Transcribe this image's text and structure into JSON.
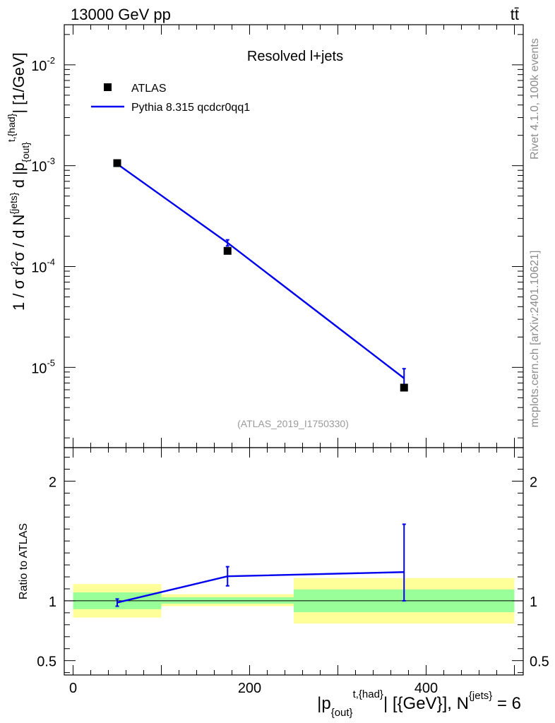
{
  "header": {
    "energy_label": "13000 GeV pp",
    "process_label": "tt̄"
  },
  "side_labels": {
    "rivet": "Rivet 4.1.0,  100k events",
    "mcplots": "mcplots.cern.ch [arXiv:2401.10621]"
  },
  "chart_data": [
    {
      "type": "scatter",
      "panel": "main",
      "title": "Resolved l+jets",
      "watermark": "(ATLAS_2019_I1750330)",
      "ylabel": "1 / σ d²σ / d N^{jets} d |p_{out}^{t,{had}}| [1/GeV]",
      "yscale": "log",
      "ylim": [
        1.6e-06,
        0.025
      ],
      "xlim": [
        -10,
        510
      ],
      "y_ticks": [
        {
          "value": 1e-05,
          "base": "10",
          "exp": "-5"
        },
        {
          "value": 0.0001,
          "base": "10",
          "exp": "-4"
        },
        {
          "value": 0.001,
          "base": "10",
          "exp": "-3"
        },
        {
          "value": 0.01,
          "base": "10",
          "exp": "-2"
        }
      ],
      "legend": {
        "position": "top-left",
        "entries": [
          "ATLAS",
          "Pythia 8.315 qcdcr0qq1"
        ]
      },
      "series": [
        {
          "name": "ATLAS",
          "style": "marker-square",
          "color": "#000000",
          "x": [
            50,
            175,
            375
          ],
          "y": [
            0.00106,
            0.000143,
            6.3e-06
          ]
        },
        {
          "name": "Pythia 8.315 qcdcr0qq1",
          "style": "line",
          "color": "#0000ee",
          "x": [
            50,
            175,
            375
          ],
          "y": [
            0.00104,
            0.000172,
            7.8e-06
          ],
          "err_up": [
            3e-05,
            1.2e-05,
            1.9e-06
          ],
          "err_down": [
            3e-05,
            1.2e-05,
            1.9e-06
          ]
        }
      ]
    },
    {
      "type": "line",
      "panel": "ratio",
      "ylabel": "Ratio to ATLAS",
      "ylim": [
        0.38,
        2.28
      ],
      "xlim": [
        -10,
        510
      ],
      "xlabel_parts": {
        "p": "|p",
        "sub": "{out}",
        "sup": "t,{had}",
        "unit": "| [{GeV}], N",
        "sup2": "{jets}",
        "tail": " = 6"
      },
      "x_ticks": [
        0,
        200,
        400
      ],
      "y_ticks": [
        0.5,
        1,
        2
      ],
      "reference": 1,
      "bands": [
        {
          "x_lo": 0,
          "x_hi": 100,
          "inner": [
            0.93,
            1.07
          ],
          "outer": [
            0.86,
            1.14
          ]
        },
        {
          "x_lo": 100,
          "x_hi": 250,
          "inner": [
            0.975,
            1.03
          ],
          "outer": [
            0.955,
            1.055
          ]
        },
        {
          "x_lo": 250,
          "x_hi": 500,
          "inner": [
            0.905,
            1.095
          ],
          "outer": [
            0.81,
            1.19
          ]
        }
      ],
      "series": [
        {
          "name": "Pythia 8.315 qcdcr0qq1",
          "color": "#0000ee",
          "x": [
            50,
            175,
            375
          ],
          "y": [
            0.985,
            1.205,
            1.24
          ],
          "err_up": [
            0.03,
            0.08,
            0.4
          ],
          "err_down": [
            0.03,
            0.08,
            0.24
          ]
        }
      ]
    }
  ]
}
